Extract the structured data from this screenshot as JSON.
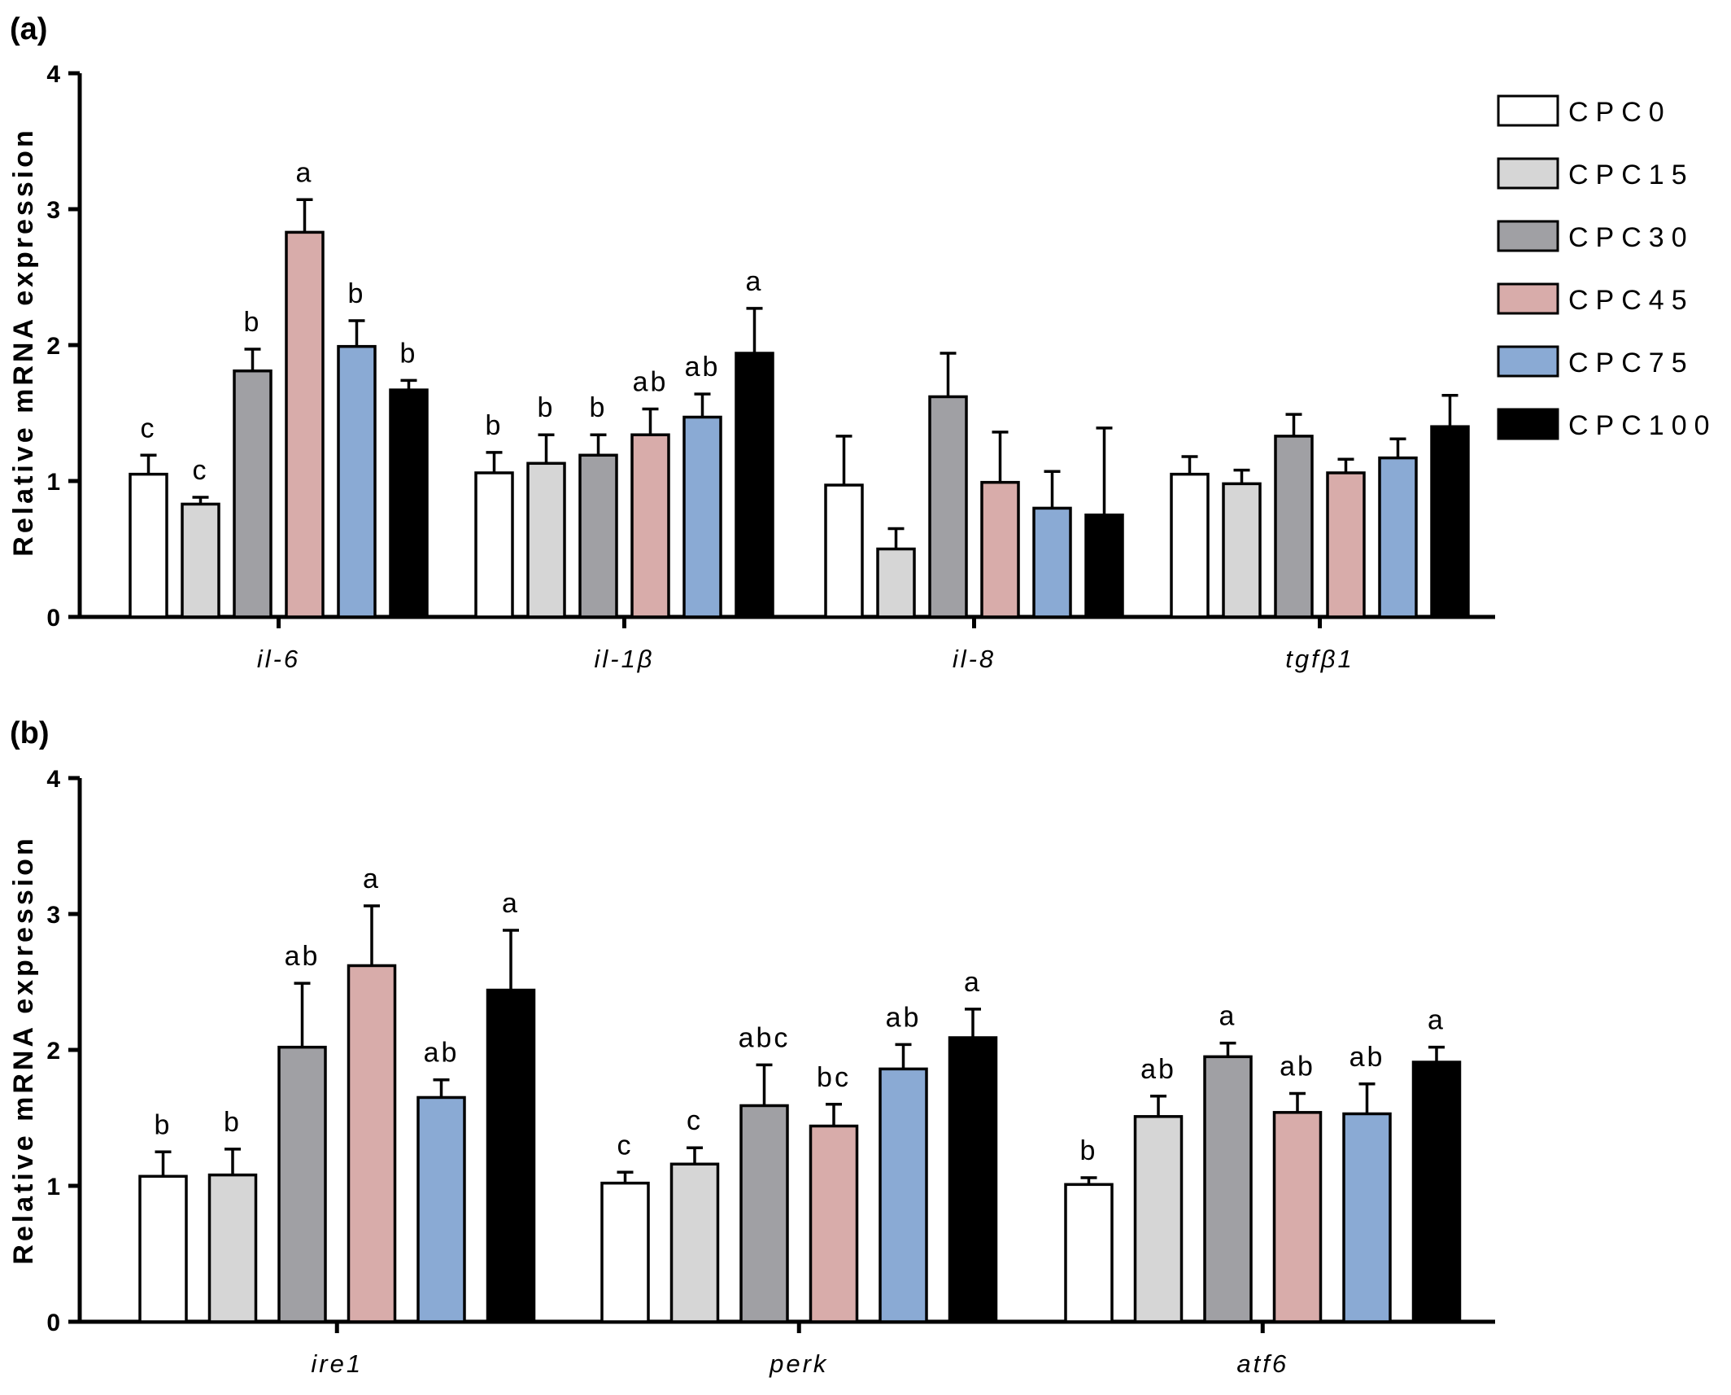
{
  "legend": [
    {
      "name": "CPC0",
      "color": "#ffffff"
    },
    {
      "name": "CPC15",
      "color": "#d6d6d6"
    },
    {
      "name": "CPC30",
      "color": "#a0a0a4"
    },
    {
      "name": "CPC45",
      "color": "#d8acaa"
    },
    {
      "name": "CPC75",
      "color": "#8aaad4"
    },
    {
      "name": "CPC100",
      "color": "#000000"
    }
  ],
  "chart_data": [
    {
      "panel": "(a)",
      "type": "bar",
      "ylabel": "Relative mRNA expression",
      "ylim": [
        0,
        4
      ],
      "yticks": [
        "0",
        "1",
        "2",
        "3",
        "4"
      ],
      "categories": [
        "il-6",
        "il-1β",
        "il-8",
        "tgfβ1"
      ],
      "series": [
        {
          "name": "CPC0",
          "values": [
            1.05,
            1.06,
            0.97,
            1.05
          ],
          "errors": [
            0.14,
            0.15,
            0.36,
            0.13
          ],
          "labels": [
            "c",
            "b",
            "",
            ""
          ]
        },
        {
          "name": "CPC15",
          "values": [
            0.83,
            1.13,
            0.5,
            0.98
          ],
          "errors": [
            0.05,
            0.21,
            0.15,
            0.1
          ],
          "labels": [
            "c",
            "b",
            "",
            ""
          ]
        },
        {
          "name": "CPC30",
          "values": [
            1.81,
            1.19,
            1.62,
            1.33
          ],
          "errors": [
            0.16,
            0.15,
            0.32,
            0.16
          ],
          "labels": [
            "b",
            "b",
            "",
            ""
          ]
        },
        {
          "name": "CPC45",
          "values": [
            2.83,
            1.34,
            0.99,
            1.06
          ],
          "errors": [
            0.24,
            0.19,
            0.37,
            0.1
          ],
          "labels": [
            "a",
            "ab",
            "",
            ""
          ]
        },
        {
          "name": "CPC75",
          "values": [
            1.99,
            1.47,
            0.8,
            1.17
          ],
          "errors": [
            0.19,
            0.17,
            0.27,
            0.14
          ],
          "labels": [
            "b",
            "ab",
            "",
            ""
          ]
        },
        {
          "name": "CPC100",
          "values": [
            1.67,
            1.94,
            0.75,
            1.4
          ],
          "errors": [
            0.07,
            0.33,
            0.64,
            0.23
          ],
          "labels": [
            "b",
            "a",
            "",
            ""
          ]
        }
      ]
    },
    {
      "panel": "(b)",
      "type": "bar",
      "ylabel": "Relative mRNA expression",
      "ylim": [
        0,
        4
      ],
      "yticks": [
        "0",
        "1",
        "2",
        "3",
        "4"
      ],
      "categories": [
        "ire1",
        "perk",
        "atf6"
      ],
      "series": [
        {
          "name": "CPC0",
          "values": [
            1.07,
            1.02,
            1.01
          ],
          "errors": [
            0.18,
            0.08,
            0.05
          ],
          "labels": [
            "b",
            "c",
            "b"
          ]
        },
        {
          "name": "CPC15",
          "values": [
            1.08,
            1.16,
            1.51
          ],
          "errors": [
            0.19,
            0.12,
            0.15
          ],
          "labels": [
            "b",
            "c",
            "ab"
          ]
        },
        {
          "name": "CPC30",
          "values": [
            2.02,
            1.59,
            1.95
          ],
          "errors": [
            0.47,
            0.3,
            0.1
          ],
          "labels": [
            "ab",
            "abc",
            "a"
          ]
        },
        {
          "name": "CPC45",
          "values": [
            2.62,
            1.44,
            1.54
          ],
          "errors": [
            0.44,
            0.16,
            0.14
          ],
          "labels": [
            "a",
            "bc",
            "ab"
          ]
        },
        {
          "name": "CPC75",
          "values": [
            1.65,
            1.86,
            1.53
          ],
          "errors": [
            0.13,
            0.18,
            0.22
          ],
          "labels": [
            "ab",
            "ab",
            "ab"
          ]
        },
        {
          "name": "CPC100",
          "values": [
            2.44,
            2.09,
            1.91
          ],
          "errors": [
            0.44,
            0.21,
            0.11
          ],
          "labels": [
            "a",
            "a",
            "a"
          ]
        }
      ]
    }
  ]
}
